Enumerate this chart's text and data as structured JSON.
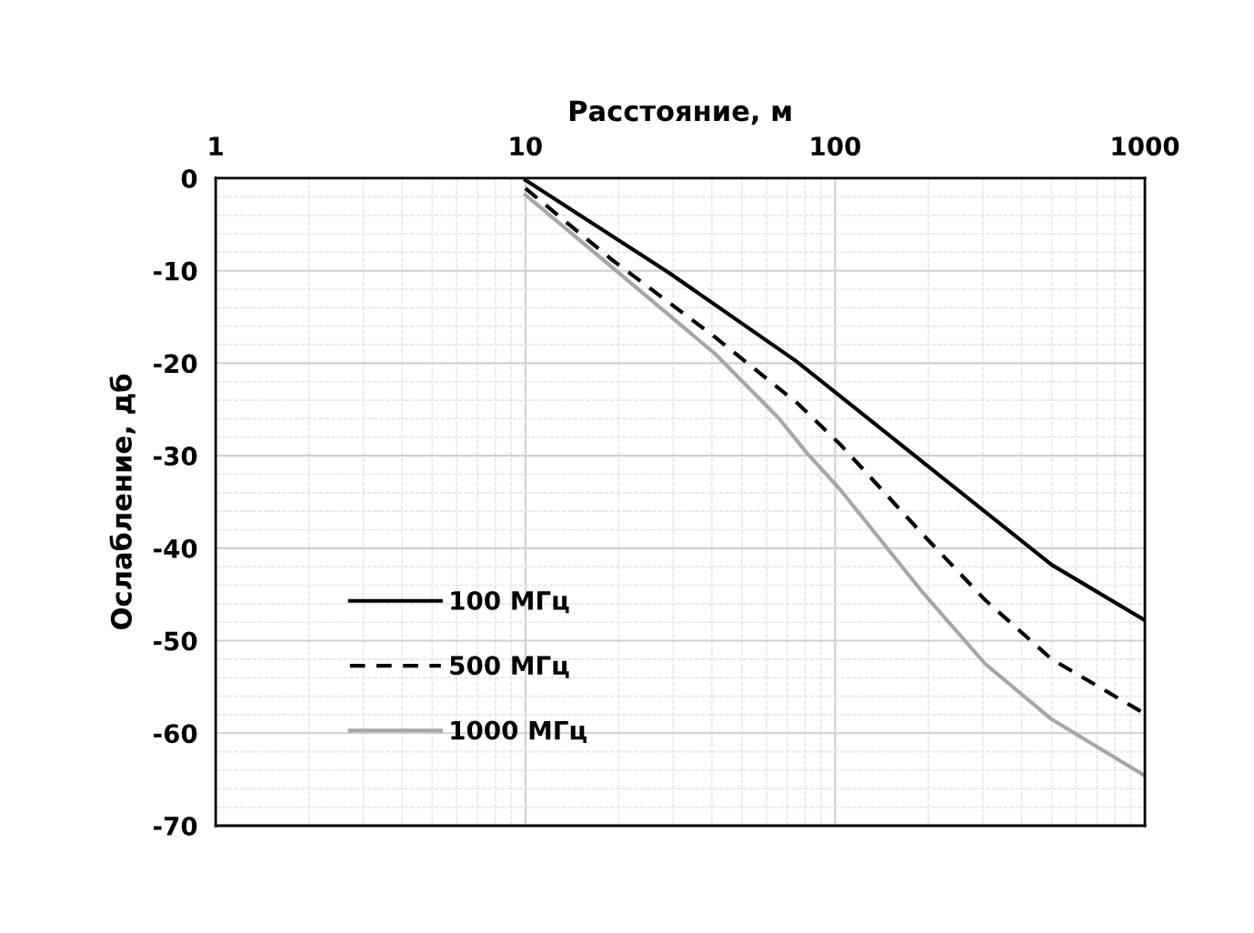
{
  "chart_data": {
    "type": "line",
    "xlabel": "Расстояние, м",
    "ylabel": "Ослабление, дб",
    "log": "x",
    "xlim": [
      1,
      1000
    ],
    "xticks": [
      1,
      10,
      100,
      1000
    ],
    "ylim": [
      -70,
      0
    ],
    "yticks": [
      0,
      -10,
      -20,
      -30,
      -40,
      -50,
      -60,
      -70
    ],
    "grid": true,
    "legend": "bottom left",
    "series": [
      {
        "name": "100 МГц",
        "color": "#000000",
        "line_style": "solid",
        "x": [
          10,
          29,
          75,
          500,
          1000
        ],
        "values": [
          -0.2,
          -10.2,
          -19.8,
          -41.8,
          -47.8
        ]
      },
      {
        "name": "500 МГц",
        "color": "#000000",
        "line_style": "dashed",
        "x": [
          10,
          19,
          41,
          76,
          104,
          193,
          305,
          500,
          1000
        ],
        "values": [
          -1.1,
          -8.8,
          -17.2,
          -24.4,
          -28.8,
          -38.6,
          -45.6,
          -52.0,
          -57.9
        ]
      },
      {
        "name": "1000 МГц",
        "color": "#a6a6a6",
        "line_style": "solid",
        "x": [
          10,
          19,
          41,
          66,
          81,
          104,
          193,
          305,
          500,
          1000
        ],
        "values": [
          -1.8,
          -9.6,
          -19.0,
          -26.0,
          -29.7,
          -33.7,
          -44.9,
          -52.5,
          -58.5,
          -64.6
        ]
      }
    ]
  }
}
